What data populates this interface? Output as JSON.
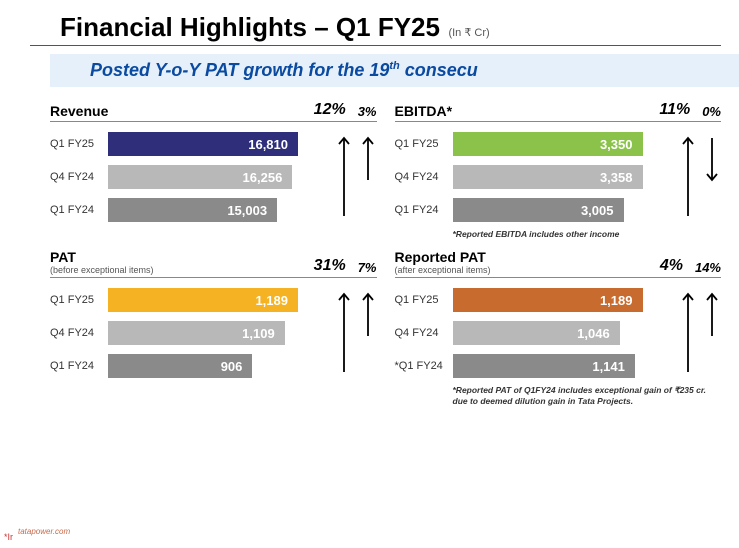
{
  "title": {
    "main": "Financial Highlights – Q1 FY25",
    "unit": "(In ₹ Cr)"
  },
  "banner": {
    "prefix": "Posted Y-o-Y PAT growth for the 19",
    "sup": "th",
    "suffix": " consecu"
  },
  "colors": {
    "highlight_revenue": "#2e2e7a",
    "highlight_ebitda": "#8bc34a",
    "highlight_pat": "#f5b324",
    "highlight_rpat": "#c86b2e",
    "bar_mid": "#b8b8b8",
    "bar_low": "#8a8a8a",
    "banner_bg": "#e6f0fa",
    "banner_text": "#0a4aa0"
  },
  "panels": [
    {
      "key": "revenue",
      "title": "Revenue",
      "subtitle": "",
      "g1": "12%",
      "g2": "3%",
      "arrow1": "up",
      "arrow2": "up",
      "max_track": 190,
      "bars": [
        {
          "label": "Q1 FY25",
          "value": "16,810",
          "width_pct": 100,
          "color": "#2e2e7a"
        },
        {
          "label": "Q4 FY24",
          "value": "16,256",
          "width_pct": 97,
          "color": "#b8b8b8"
        },
        {
          "label": "Q1 FY24",
          "value": "15,003",
          "width_pct": 89,
          "color": "#8a8a8a"
        }
      ],
      "footnote": ""
    },
    {
      "key": "ebitda",
      "title": "EBITDA*",
      "subtitle": "",
      "g1": "11%",
      "g2": "0%",
      "arrow1": "up",
      "arrow2": "down",
      "max_track": 190,
      "bars": [
        {
          "label": "Q1 FY25",
          "value": "3,350",
          "width_pct": 100,
          "color": "#8bc34a"
        },
        {
          "label": "Q4 FY24",
          "value": "3,358",
          "width_pct": 100,
          "color": "#b8b8b8"
        },
        {
          "label": "Q1 FY24",
          "value": "3,005",
          "width_pct": 90,
          "color": "#8a8a8a"
        }
      ],
      "footnote": "*Reported EBITDA includes other income"
    },
    {
      "key": "pat",
      "title": "PAT",
      "subtitle": "(before exceptional items)",
      "g1": "31%",
      "g2": "7%",
      "arrow1": "up",
      "arrow2": "up",
      "max_track": 190,
      "bars": [
        {
          "label": "Q1 FY25",
          "value": "1,189",
          "width_pct": 100,
          "color": "#f5b324"
        },
        {
          "label": "Q4 FY24",
          "value": "1,109",
          "width_pct": 93,
          "color": "#b8b8b8"
        },
        {
          "label": "Q1 FY24",
          "value": "906",
          "width_pct": 76,
          "color": "#8a8a8a"
        }
      ],
      "footnote": ""
    },
    {
      "key": "rpat",
      "title": "Reported PAT",
      "subtitle": "(after exceptional items)",
      "g1": "4%",
      "g2": "14%",
      "arrow1": "up",
      "arrow2": "up",
      "max_track": 190,
      "bars": [
        {
          "label": "Q1 FY25",
          "value": "1,189",
          "width_pct": 100,
          "color": "#c86b2e"
        },
        {
          "label": "Q4 FY24",
          "value": "1,046",
          "width_pct": 88,
          "color": "#b8b8b8"
        },
        {
          "label": "*Q1 FY24",
          "value": "1,141",
          "width_pct": 96,
          "color": "#8a8a8a"
        }
      ],
      "footnote": "*Reported PAT of Q1FY24 includes exceptional gain of ₹235 cr. due to deemed dilution gain in Tata Projects."
    }
  ],
  "footer": {
    "left1": "*Ir",
    "left2": "tatapower.com"
  }
}
